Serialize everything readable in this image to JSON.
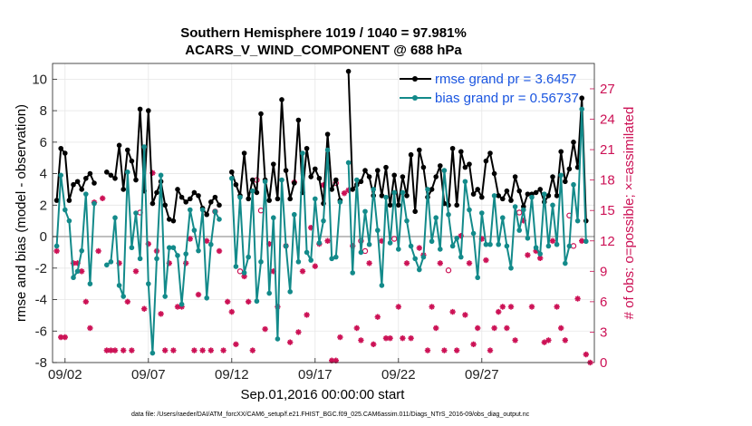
{
  "chart_data": {
    "type": "line",
    "title": "Southern Hemisphere 1019 / 1040 = 97.981%",
    "subtitle": "ACARS_V_WIND_COMPONENT @ 688 hPa",
    "xlabel": "Sep.01,2016 00:00:00 start",
    "ylabel_left": "rmse and bias (model - observation)",
    "ylabel_right": "# of obs: o=possible; ×=assimilated",
    "ylim_left": [
      -8,
      11
    ],
    "ylim_right": [
      0,
      29.5
    ],
    "xlim": [
      1.25,
      33.75
    ],
    "yticks_left": [
      -8,
      -6,
      -4,
      -2,
      0,
      2,
      4,
      6,
      8,
      10
    ],
    "yticks_right": [
      0,
      3,
      6,
      9,
      12,
      15,
      18,
      21,
      24,
      27
    ],
    "xticks": [
      {
        "value": 2,
        "label": "09/02"
      },
      {
        "value": 7,
        "label": "09/07"
      },
      {
        "value": 12,
        "label": "09/12"
      },
      {
        "value": 17,
        "label": "09/17"
      },
      {
        "value": 22,
        "label": "09/22"
      },
      {
        "value": 27,
        "label": "09/27"
      }
    ],
    "x_start": 1.5,
    "x_step": 0.25,
    "series": [
      {
        "name": "rmse grand pr = 3.6457",
        "color": "#000000",
        "axis": "left",
        "values": [
          2.3,
          5.6,
          5.3,
          2.3,
          3.3,
          3.5,
          3.0,
          3.7,
          4.0,
          3.4,
          null,
          null,
          4.1,
          3.9,
          3.7,
          5.8,
          3.0,
          5.5,
          4.8,
          3.6,
          8.1,
          2.9,
          8.0,
          2.1,
          2.8,
          3.5,
          2.0,
          1.1,
          1.0,
          3.0,
          2.5,
          2.2,
          2.4,
          2.8,
          2.6,
          1.8,
          1.4,
          2.2,
          2.5,
          2.0,
          null,
          null,
          4.1,
          3.3,
          2.6,
          5.3,
          2.4,
          3.6,
          2.8,
          7.8,
          3.6,
          2.3,
          4.6,
          2.4,
          8.7,
          4.2,
          2.4,
          3.4,
          7.4,
          2.8,
          5.6,
          3.8,
          4.3,
          3.7,
          2.1,
          6.5,
          3.0,
          3.6,
          2.3,
          null,
          10.5,
          3.0,
          3.3,
          3.5,
          4.2,
          3.8,
          2.6,
          4.2,
          2.6,
          4.4,
          2.0,
          3.9,
          2.0,
          3.8,
          2.6,
          5.2,
          1.6,
          5.5,
          4.4,
          2.5,
          3.0,
          3.8,
          4.5,
          2.1,
          2.0,
          5.6,
          2.0,
          5.4,
          4.4,
          4.6,
          2.7,
          3.0,
          2.5,
          4.8,
          5.3,
          4.0,
          2.6,
          2.4,
          2.9,
          2.3,
          3.8,
          2.9,
          1.9,
          2.7,
          2.7,
          2.8,
          3.0,
          2.2,
          2.6,
          3.8,
          2.6,
          5.4,
          3.5,
          4.3,
          6.0,
          4.4,
          8.8,
          1.0
        ]
      },
      {
        "name": "bias grand pr = 0.56737",
        "color": "#138a8a",
        "axis": "left",
        "values": [
          -0.6,
          3.9,
          1.7,
          1.0,
          -2.6,
          -2.2,
          -0.9,
          2.7,
          -3.0,
          2.1,
          null,
          null,
          -1.8,
          -1.6,
          1.2,
          -3.1,
          -3.8,
          4.1,
          -0.7,
          1.5,
          -1.4,
          5.7,
          -3.0,
          -7.4,
          -1.4,
          3.9,
          -3.8,
          -0.7,
          -0.7,
          -1.2,
          -4.3,
          -1.1,
          1.7,
          0.4,
          -0.9,
          1.7,
          -3.9,
          -0.5,
          1.6,
          1.1,
          null,
          null,
          3.7,
          -1.9,
          2.5,
          -2.3,
          -1.3,
          2.9,
          -4.1,
          -1.6,
          3.5,
          -3.6,
          1.2,
          -6.5,
          3.6,
          -0.6,
          -3.5,
          1.4,
          -1.6,
          5.3,
          -1.0,
          -1.5,
          2.4,
          -0.4,
          1.0,
          5.5,
          -1.4,
          -1.3,
          2.2,
          null,
          4.7,
          -2.3,
          3.6,
          -1.0,
          1.6,
          -0.5,
          3.0,
          0.4,
          -3.1,
          2.5,
          -0.4,
          2.8,
          -0.8,
          2.8,
          1.0,
          -0.6,
          -1.4,
          -2.1,
          -1.3,
          3.0,
          -0.3,
          1.2,
          -0.8,
          4.2,
          1.4,
          -0.6,
          -0.1,
          -1.3,
          3.5,
          1.7,
          0.2,
          -2.6,
          1.5,
          -0.5,
          -0.5,
          2.6,
          -0.5,
          1.2,
          -0.6,
          -2.0,
          1.9,
          0.4,
          1.7,
          -0.1,
          2.5,
          -0.7,
          -1.1,
          2.7,
          -0.6,
          2.0,
          -0.5,
          3.9,
          -1.7,
          -0.6,
          3.3,
          1.0,
          8.1,
          -0.3
        ]
      },
      {
        "name": "obs possible",
        "color": "#cc1155",
        "axis": "right",
        "marker": "o",
        "points": [
          [
            6.5,
            14.8
          ],
          [
            11.0,
            14.9
          ],
          [
            12.5,
            9.0
          ],
          [
            13.5,
            18.0
          ],
          [
            13.75,
            15.0
          ],
          [
            18.25,
            17.7
          ],
          [
            19.75,
            12.0
          ],
          [
            20.0,
            11.0
          ],
          [
            21.75,
            12.2
          ],
          [
            25.0,
            9.1
          ],
          [
            29.25,
            14.8
          ],
          [
            32.25,
            14.5
          ],
          [
            32.5,
            11.5
          ]
        ]
      },
      {
        "name": "obs assimilated",
        "color": "#cc1155",
        "axis": "right",
        "marker": "x",
        "points": [
          [
            1.5,
            11.0
          ],
          [
            1.75,
            2.5
          ],
          [
            2.0,
            2.5
          ],
          [
            2.5,
            9.8
          ],
          [
            2.75,
            9.8
          ],
          [
            3.0,
            9.0
          ],
          [
            3.25,
            6.0
          ],
          [
            3.5,
            3.4
          ],
          [
            3.75,
            15.8
          ],
          [
            4.0,
            11.0
          ],
          [
            4.25,
            16.2
          ],
          [
            4.5,
            1.2
          ],
          [
            4.75,
            1.2
          ],
          [
            5.0,
            1.2
          ],
          [
            5.25,
            9.8
          ],
          [
            5.5,
            1.2
          ],
          [
            5.75,
            6.0
          ],
          [
            6.0,
            1.2
          ],
          [
            6.25,
            9.0
          ],
          [
            6.75,
            5.3
          ],
          [
            7.0,
            11.7
          ],
          [
            7.25,
            18.7
          ],
          [
            7.5,
            11.0
          ],
          [
            7.75,
            4.8
          ],
          [
            8.0,
            1.2
          ],
          [
            8.25,
            9.8
          ],
          [
            8.5,
            1.2
          ],
          [
            8.75,
            5.5
          ],
          [
            9.0,
            5.5
          ],
          [
            9.25,
            9.8
          ],
          [
            9.5,
            12.2
          ],
          [
            9.75,
            1.2
          ],
          [
            10.0,
            6.7
          ],
          [
            10.25,
            1.2
          ],
          [
            10.5,
            12.0
          ],
          [
            10.75,
            1.2
          ],
          [
            11.25,
            11.0
          ],
          [
            11.5,
            1.2
          ],
          [
            11.75,
            6.0
          ],
          [
            12.0,
            5.0
          ],
          [
            12.25,
            1.8
          ],
          [
            12.75,
            8.5
          ],
          [
            13.0,
            6.0
          ],
          [
            13.25,
            1.2
          ],
          [
            14.0,
            3.3
          ],
          [
            14.25,
            11.7
          ],
          [
            14.5,
            9.0
          ],
          [
            14.75,
            5.5
          ],
          [
            15.25,
            11.5
          ],
          [
            15.5,
            2.0
          ],
          [
            15.75,
            17.8
          ],
          [
            16.0,
            3.0
          ],
          [
            16.25,
            9.0
          ],
          [
            16.5,
            4.7
          ],
          [
            16.75,
            13.3
          ],
          [
            17.0,
            9.5
          ],
          [
            17.25,
            11.7
          ],
          [
            17.5,
            17.5
          ],
          [
            17.75,
            12.0
          ],
          [
            18.0,
            0.2
          ],
          [
            18.25,
            0.2
          ],
          [
            18.5,
            2.5
          ],
          [
            18.75,
            16.7
          ],
          [
            19.0,
            17.0
          ],
          [
            19.25,
            11.5
          ],
          [
            19.5,
            3.4
          ],
          [
            19.75,
            2.2
          ],
          [
            20.25,
            9.8
          ],
          [
            20.5,
            1.8
          ],
          [
            20.75,
            4.5
          ],
          [
            21.0,
            12.0
          ],
          [
            21.25,
            2.4
          ],
          [
            21.5,
            2.4
          ],
          [
            22.0,
            5.5
          ],
          [
            22.25,
            2.4
          ],
          [
            22.5,
            9.8
          ],
          [
            22.75,
            2.4
          ],
          [
            23.25,
            11.3
          ],
          [
            23.5,
            10.6
          ],
          [
            23.75,
            1.2
          ],
          [
            24.0,
            5.5
          ],
          [
            24.25,
            3.4
          ],
          [
            24.5,
            9.8
          ],
          [
            24.75,
            1.2
          ],
          [
            25.25,
            5.0
          ],
          [
            25.5,
            1.2
          ],
          [
            25.75,
            12.5
          ],
          [
            26.0,
            4.7
          ],
          [
            26.25,
            9.8
          ],
          [
            26.5,
            1.8
          ],
          [
            26.75,
            3.4
          ],
          [
            27.0,
            12.2
          ],
          [
            27.25,
            10.1
          ],
          [
            27.5,
            1.2
          ],
          [
            27.75,
            3.4
          ],
          [
            28.0,
            5.0
          ],
          [
            28.25,
            5.5
          ],
          [
            28.5,
            3.4
          ],
          [
            28.75,
            5.5
          ],
          [
            29.0,
            2.2
          ],
          [
            29.5,
            14.0
          ],
          [
            29.75,
            10.6
          ],
          [
            30.0,
            5.5
          ],
          [
            30.25,
            11.0
          ],
          [
            30.5,
            10.3
          ],
          [
            30.75,
            2.0
          ],
          [
            31.0,
            2.2
          ],
          [
            31.25,
            12.0
          ],
          [
            31.5,
            5.5
          ],
          [
            31.75,
            3.4
          ],
          [
            32.0,
            2.2
          ],
          [
            32.75,
            6.3
          ],
          [
            33.0,
            12.0
          ],
          [
            33.25,
            0.8
          ],
          [
            33.5,
            0.0
          ]
        ]
      }
    ],
    "legend_location": "top-right",
    "grid": true
  },
  "footer": {
    "data_file": "data file: /Users/raeder/DAI/ATM_forcXX/CAM6_setup/f.e21.FHIST_BGC.f09_025.CAM6assim.011/Diags_NTrS_2016-09/obs_diag_output.nc"
  }
}
